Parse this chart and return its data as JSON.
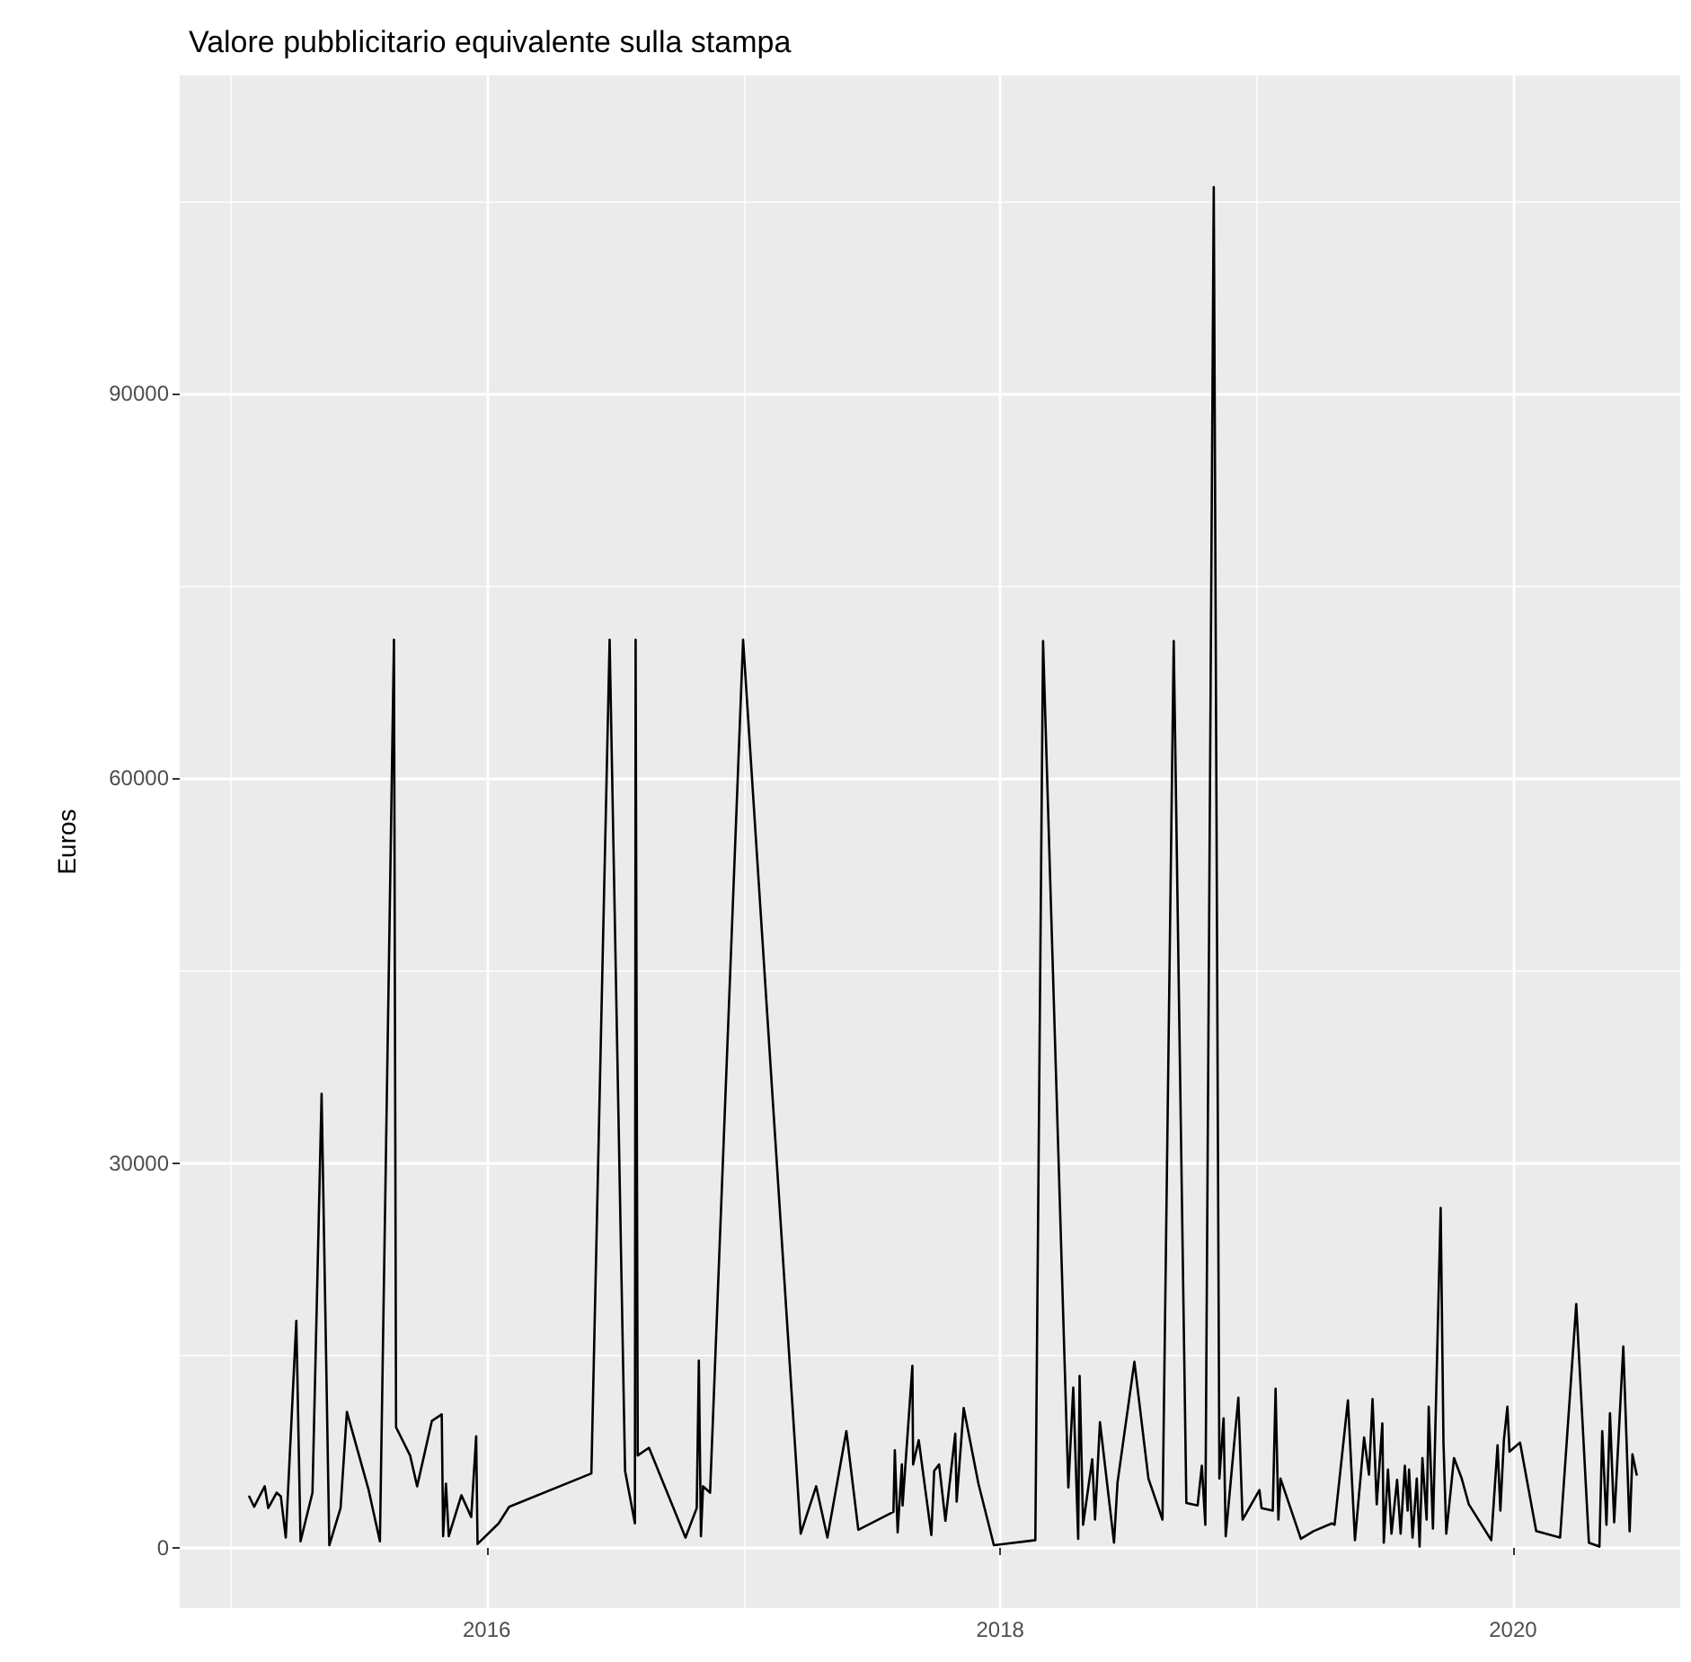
{
  "chart_data": {
    "type": "line",
    "title": "Valore pubblicitario equivalente sulla stampa",
    "ylabel": "Euros",
    "grid": true,
    "xlim": [
      "2014-10-21",
      "2020-08-26"
    ],
    "xticks": [
      {
        "value": "2015",
        "label": null
      },
      "2016",
      {
        "value": "2017",
        "label": null
      },
      "2018",
      {
        "value": "2019",
        "label": null
      },
      "2020"
    ],
    "ylim": [
      -4700,
      114800
    ],
    "yticks": [
      0,
      {
        "value": 15000,
        "label": null
      },
      30000,
      {
        "value": 45000,
        "label": null
      },
      60000,
      {
        "value": 75000,
        "label": null
      },
      90000,
      {
        "value": 105000,
        "label": null
      }
    ],
    "series": [
      {
        "color": "#000000",
        "x": [
          "2015-01-28",
          "2015-02-04",
          "2015-02-19",
          "2015-02-24",
          "2015-03-08",
          "2015-03-14",
          "2015-03-21",
          "2015-04-05",
          "2015-04-11",
          "2015-04-28",
          "2015-05-11",
          "2015-05-22",
          "2015-06-07",
          "2015-06-16",
          "2015-07-17",
          "2015-08-02",
          "2015-08-22",
          "2015-08-25",
          "2015-09-14",
          "2015-09-24",
          "2015-10-15",
          "2015-10-29",
          "2015-10-31",
          "2015-11-04",
          "2015-11-08",
          "2015-11-26",
          "2015-12-10",
          "2015-12-17",
          "2015-12-19",
          "2016-01-18",
          "2016-02-02",
          "2016-05-29",
          "2016-06-24",
          "2016-07-16",
          "2016-07-30",
          "2016-07-31",
          "2016-08-03",
          "2016-08-19",
          "2016-10-10",
          "2016-10-26",
          "2016-10-29",
          "2016-11-01",
          "2016-11-04",
          "2016-11-14",
          "2016-12-31",
          "2017-03-23",
          "2017-04-14",
          "2017-04-30",
          "2017-05-27",
          "2017-06-13",
          "2017-08-02",
          "2017-08-04",
          "2017-08-08",
          "2017-08-14",
          "2017-08-15",
          "2017-08-29",
          "2017-08-30",
          "2017-09-07",
          "2017-09-25",
          "2017-09-29",
          "2017-10-06",
          "2017-10-15",
          "2017-10-29",
          "2017-10-31",
          "2017-11-10",
          "2017-12-01",
          "2017-12-23",
          "2018-02-20",
          "2018-03-03",
          "2018-04-08",
          "2018-04-15",
          "2018-04-22",
          "2018-04-24",
          "2018-04-29",
          "2018-05-12",
          "2018-05-16",
          "2018-05-23",
          "2018-06-12",
          "2018-06-17",
          "2018-07-11",
          "2018-07-31",
          "2018-08-20",
          "2018-09-05",
          "2018-09-23",
          "2018-10-09",
          "2018-10-15",
          "2018-10-20",
          "2018-11-01",
          "2018-11-09",
          "2018-11-15",
          "2018-11-18",
          "2018-12-06",
          "2018-12-12",
          "2019-01-05",
          "2019-01-08",
          "2019-01-24",
          "2019-01-28",
          "2019-02-01",
          "2019-02-04",
          "2019-03-05",
          "2019-03-23",
          "2019-04-18",
          "2019-04-22",
          "2019-05-11",
          "2019-05-21",
          "2019-06-03",
          "2019-06-10",
          "2019-06-15",
          "2019-06-21",
          "2019-06-29",
          "2019-07-01",
          "2019-07-07",
          "2019-07-12",
          "2019-07-20",
          "2019-07-25",
          "2019-07-31",
          "2019-08-04",
          "2019-08-06",
          "2019-08-11",
          "2019-08-17",
          "2019-08-21",
          "2019-08-25",
          "2019-08-31",
          "2019-09-03",
          "2019-09-09",
          "2019-09-20",
          "2019-09-24",
          "2019-09-28",
          "2019-10-09",
          "2019-10-20",
          "2019-10-30",
          "2019-12-01",
          "2019-12-10",
          "2019-12-14",
          "2019-12-19",
          "2019-12-24",
          "2019-12-27",
          "2020-01-11",
          "2020-02-03",
          "2020-03-08",
          "2020-03-31",
          "2020-04-18",
          "2020-05-03",
          "2020-05-07",
          "2020-05-13",
          "2020-05-18",
          "2020-05-24",
          "2020-06-06",
          "2020-06-15",
          "2020-06-19",
          "2020-06-25"
        ],
        "values": [
          4000,
          3200,
          4800,
          3100,
          4300,
          4000,
          800,
          17700,
          500,
          4300,
          35400,
          200,
          3100,
          10600,
          4500,
          500,
          70800,
          9400,
          7200,
          4800,
          9900,
          10400,
          900,
          5000,
          900,
          4100,
          2400,
          8700,
          300,
          1900,
          3200,
          5800,
          70800,
          6000,
          1900,
          70800,
          7200,
          7800,
          800,
          3100,
          14600,
          900,
          4800,
          4300,
          70800,
          1100,
          4800,
          800,
          9100,
          1400,
          2800,
          7600,
          1200,
          6500,
          3300,
          14200,
          6500,
          8400,
          1000,
          6000,
          6500,
          2100,
          8900,
          3600,
          10900,
          5000,
          200,
          600,
          70700,
          4700,
          12500,
          700,
          13400,
          1800,
          6900,
          2200,
          9800,
          400,
          5100,
          14500,
          5400,
          2200,
          70700,
          3500,
          3300,
          6400,
          1800,
          106100,
          5400,
          10100,
          900,
          11700,
          2200,
          4500,
          3100,
          2900,
          12400,
          2200,
          5400,
          700,
          1300,
          1900,
          1800,
          11500,
          600,
          8600,
          5700,
          11600,
          3400,
          9700,
          400,
          6100,
          1100,
          5300,
          1100,
          6400,
          2900,
          6100,
          800,
          5400,
          100,
          7000,
          2200,
          11000,
          1500,
          26500,
          8200,
          1100,
          7000,
          5400,
          3400,
          600,
          8000,
          2900,
          8400,
          11000,
          7500,
          8200,
          1300,
          800,
          19000,
          400,
          100,
          9100,
          1800,
          10500,
          2000,
          15700,
          1300,
          7300,
          5700
        ]
      }
    ]
  }
}
